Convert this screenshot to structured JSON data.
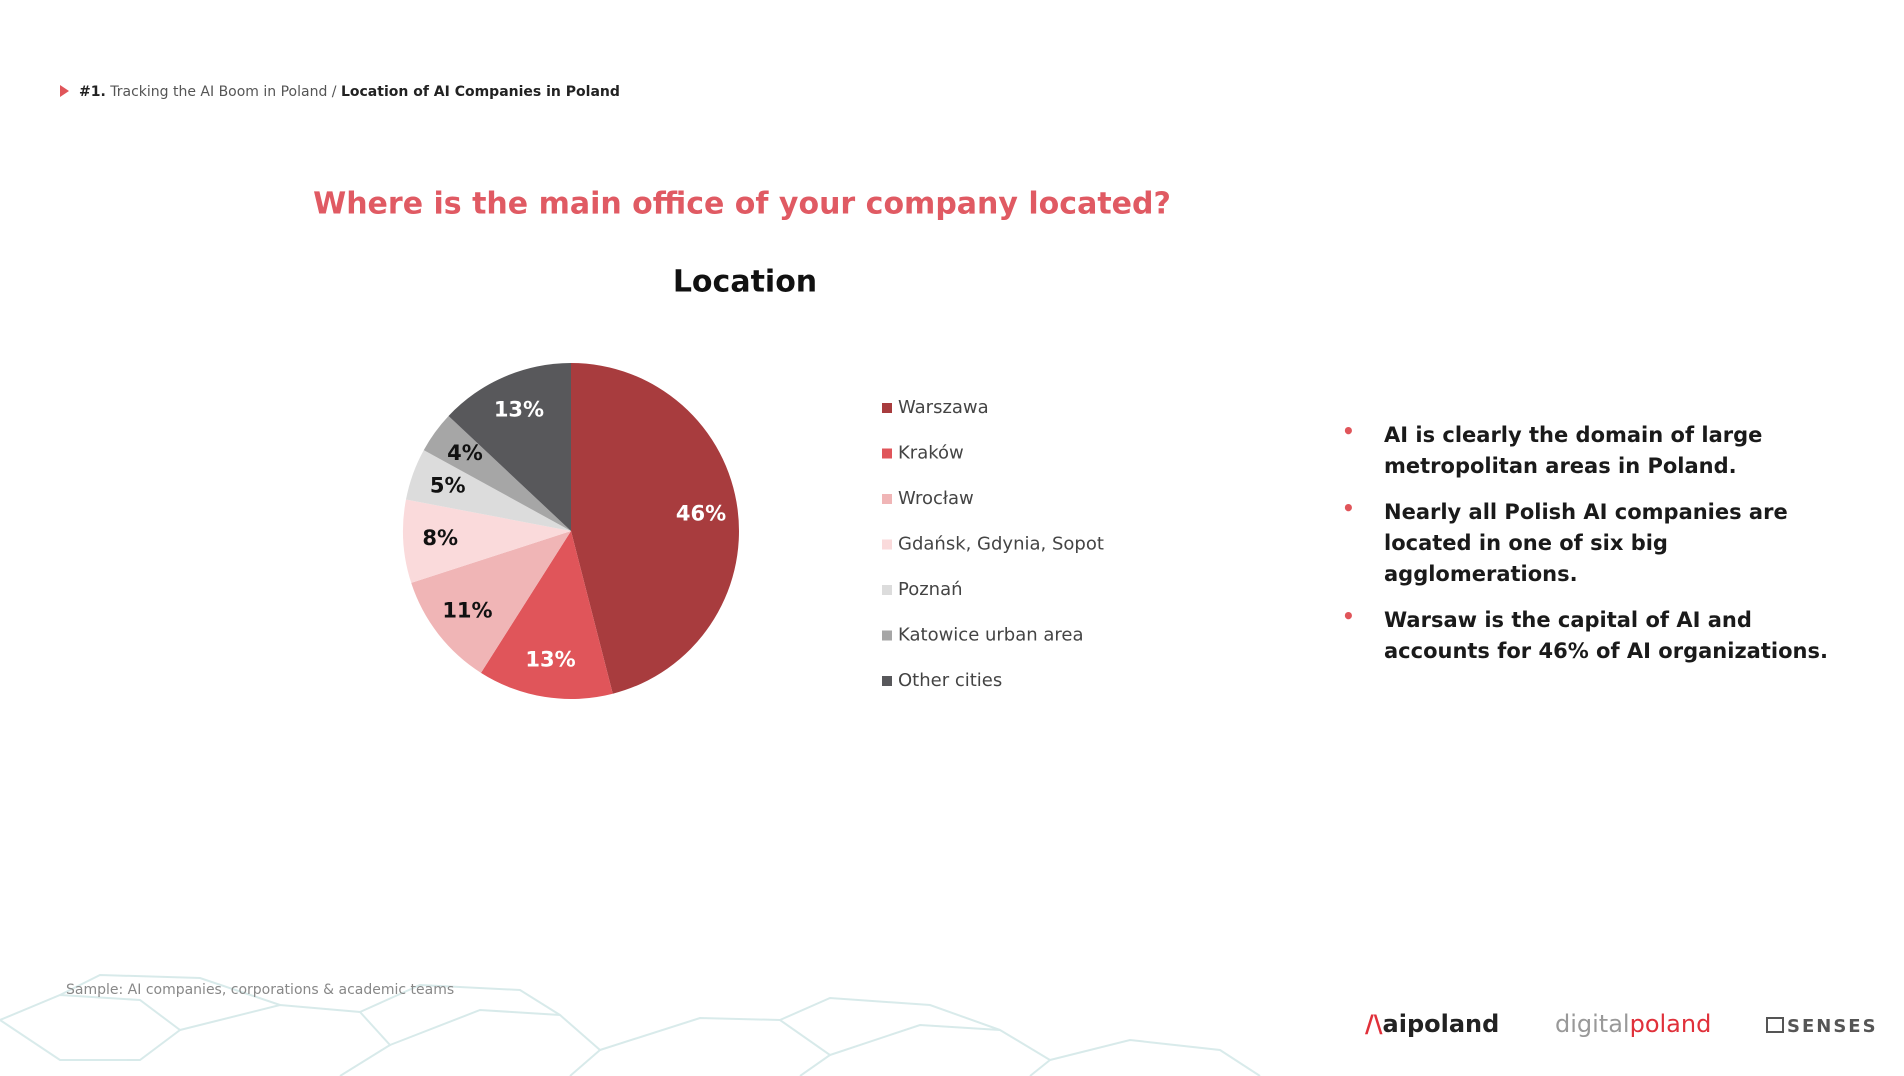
{
  "breadcrumb": {
    "number": "#1.",
    "section": "Tracking the AI Boom in Poland /",
    "page": "Location of AI Companies in Poland"
  },
  "question": "Where is the main office of your company located?",
  "chart_data": {
    "type": "pie",
    "title": "Location",
    "categories": [
      "Warszawa",
      "Kraków",
      "Wrocław",
      "Gdańsk, Gdynia, Sopot",
      "Poznań",
      "Katowice urban area",
      "Other cities"
    ],
    "values": [
      46,
      13,
      11,
      8,
      5,
      4,
      13
    ],
    "value_labels": [
      "46%",
      "13%",
      "11%",
      "8%",
      "5%",
      "4%",
      "13%"
    ],
    "colors": [
      "#a83c3e",
      "#e0555a",
      "#f0b5b6",
      "#fadadb",
      "#dcdcdc",
      "#a6a6a6",
      "#58585b"
    ]
  },
  "bullets": [
    "AI is clearly the domain of large metropolitan areas in Poland.",
    "Nearly all Polish AI companies are located in one of six big agglomerations.",
    "Warsaw is the capital of AI and accounts for 46% of AI organizations."
  ],
  "sample": "Sample: AI companies, corporations & academic teams",
  "logos": {
    "aipoland": "aipoland",
    "digital": "digital",
    "poland": "poland",
    "senses": "SENSES"
  }
}
